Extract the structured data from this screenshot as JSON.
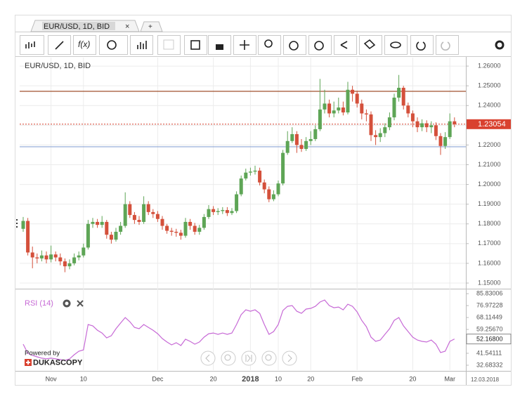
{
  "tab": {
    "label": "EUR/USD, 1D, BID",
    "close": "×",
    "add": "+"
  },
  "toolbar": {
    "function_label": "f(x)"
  },
  "branding": {
    "powered_by": "Powered by",
    "name": "DUKASCOPY"
  },
  "chart_data": [
    {
      "type": "candlestick",
      "title": "EUR/USD, 1D, BID",
      "categories": [
        null,
        null,
        null,
        null,
        null,
        null,
        "Nov",
        null,
        null,
        null,
        null,
        null,
        null,
        "10",
        null,
        null,
        null,
        null,
        null,
        null,
        null,
        null,
        null,
        null,
        null,
        null,
        null,
        null,
        null,
        "Dec",
        null,
        null,
        null,
        null,
        null,
        null,
        null,
        null,
        null,
        null,
        null,
        "20",
        null,
        null,
        null,
        null,
        null,
        null,
        null,
        "2018",
        null,
        null,
        null,
        null,
        null,
        "10",
        null,
        null,
        null,
        null,
        null,
        null,
        "20",
        null,
        null,
        null,
        null,
        null,
        null,
        null,
        null,
        null,
        "Feb",
        null,
        null,
        null,
        null,
        null,
        null,
        null,
        null,
        null,
        null,
        null,
        "20",
        null,
        null,
        null,
        null,
        null,
        null,
        null,
        "Mar",
        null
      ],
      "open": [
        1.1775,
        1.1815,
        1.1655,
        1.163,
        1.1625,
        1.164,
        1.162,
        1.1645,
        1.163,
        1.161,
        1.1585,
        1.16,
        1.163,
        1.164,
        1.168,
        1.18,
        1.181,
        1.1795,
        1.181,
        1.1745,
        1.172,
        1.176,
        1.179,
        1.19,
        1.1845,
        1.182,
        1.181,
        1.19,
        1.186,
        1.185,
        1.1825,
        1.179,
        1.1765,
        1.176,
        1.1755,
        1.174,
        1.181,
        1.179,
        1.176,
        1.178,
        1.1835,
        1.1875,
        1.186,
        1.1865,
        1.187,
        1.1855,
        1.1865,
        1.195,
        1.203,
        1.206,
        1.2065,
        1.207,
        1.201,
        1.1975,
        1.1925,
        1.195,
        1.2005,
        1.216,
        1.222,
        1.2255,
        1.22,
        1.218,
        1.222,
        1.223,
        1.228,
        1.238,
        1.241,
        1.236,
        1.2375,
        1.239,
        1.2365,
        1.248,
        1.246,
        1.241,
        1.236,
        1.2355,
        1.225,
        1.224,
        1.226,
        1.229,
        1.234,
        1.244,
        1.249,
        1.24,
        1.236,
        1.232,
        1.229,
        1.231,
        1.229,
        1.23,
        1.2245,
        1.2195,
        1.224,
        1.232
      ],
      "high": [
        1.1835,
        1.183,
        1.1685,
        1.165,
        1.1665,
        1.166,
        1.169,
        1.166,
        1.165,
        1.1625,
        1.162,
        1.165,
        1.166,
        1.17,
        1.182,
        1.183,
        1.1825,
        1.184,
        1.182,
        1.176,
        1.178,
        1.181,
        1.196,
        1.1915,
        1.186,
        1.184,
        1.194,
        1.1915,
        1.1875,
        1.1865,
        1.184,
        1.18,
        1.178,
        1.1775,
        1.177,
        1.183,
        1.1825,
        1.1805,
        1.1795,
        1.185,
        1.1895,
        1.189,
        1.188,
        1.1885,
        1.1885,
        1.188,
        1.1965,
        1.2045,
        1.208,
        1.2085,
        1.2095,
        1.2085,
        1.2025,
        1.199,
        1.197,
        1.202,
        1.2175,
        1.227,
        1.229,
        1.227,
        1.223,
        1.224,
        1.227,
        1.23,
        1.2535,
        1.248,
        1.243,
        1.242,
        1.244,
        1.242,
        1.252,
        1.25,
        1.2475,
        1.243,
        1.238,
        1.237,
        1.2275,
        1.2285,
        1.231,
        1.2365,
        1.246,
        1.2555,
        1.25,
        1.2415,
        1.2375,
        1.234,
        1.233,
        1.2325,
        1.232,
        1.2315,
        1.226,
        1.2265,
        1.236,
        1.234
      ],
      "low": [
        1.176,
        1.164,
        1.1575,
        1.16,
        1.161,
        1.16,
        1.1605,
        1.161,
        1.159,
        1.1555,
        1.157,
        1.159,
        1.1615,
        1.163,
        1.167,
        1.178,
        1.178,
        1.178,
        1.1725,
        1.17,
        1.171,
        1.1745,
        1.178,
        1.183,
        1.18,
        1.1795,
        1.18,
        1.1845,
        1.183,
        1.181,
        1.177,
        1.175,
        1.174,
        1.1735,
        1.172,
        1.173,
        1.177,
        1.1745,
        1.1745,
        1.177,
        1.1825,
        1.1845,
        1.1845,
        1.185,
        1.184,
        1.1845,
        1.1855,
        1.194,
        1.202,
        1.2045,
        1.205,
        1.1995,
        1.1955,
        1.191,
        1.1915,
        1.194,
        1.1995,
        1.215,
        1.221,
        1.216,
        1.2165,
        1.217,
        1.22,
        1.222,
        1.227,
        1.236,
        1.234,
        1.234,
        1.236,
        1.235,
        1.2355,
        1.242,
        1.239,
        1.233,
        1.232,
        1.222,
        1.22,
        1.2215,
        1.224,
        1.2275,
        1.2325,
        1.242,
        1.238,
        1.234,
        1.229,
        1.2265,
        1.227,
        1.2265,
        1.226,
        1.2225,
        1.215,
        1.218,
        1.223,
        1.229
      ],
      "close": [
        1.1815,
        1.1655,
        1.163,
        1.1625,
        1.164,
        1.162,
        1.1645,
        1.163,
        1.161,
        1.1585,
        1.16,
        1.163,
        1.164,
        1.168,
        1.18,
        1.181,
        1.1795,
        1.181,
        1.1745,
        1.172,
        1.176,
        1.179,
        1.19,
        1.1845,
        1.182,
        1.181,
        1.19,
        1.186,
        1.185,
        1.1825,
        1.179,
        1.1765,
        1.176,
        1.1755,
        1.174,
        1.181,
        1.179,
        1.176,
        1.178,
        1.1835,
        1.1875,
        1.186,
        1.1865,
        1.187,
        1.1855,
        1.1865,
        1.195,
        1.203,
        1.206,
        1.2065,
        1.207,
        1.201,
        1.1975,
        1.1925,
        1.195,
        1.2005,
        1.216,
        1.222,
        1.2255,
        1.22,
        1.218,
        1.222,
        1.223,
        1.228,
        1.238,
        1.241,
        1.236,
        1.2375,
        1.239,
        1.2365,
        1.248,
        1.246,
        1.241,
        1.236,
        1.2355,
        1.225,
        1.224,
        1.226,
        1.229,
        1.234,
        1.244,
        1.249,
        1.24,
        1.236,
        1.232,
        1.229,
        1.231,
        1.229,
        1.23,
        1.2245,
        1.2195,
        1.224,
        1.232,
        1.2305
      ],
      "up_color": "#5ea556",
      "down_color": "#d4503b",
      "ylim": [
        1.1475,
        1.2643
      ],
      "yticks": [
        {
          "value": 1.15,
          "label": "1.15000"
        },
        {
          "value": 1.16,
          "label": "1.16000"
        },
        {
          "value": 1.17,
          "label": "1.17000"
        },
        {
          "value": 1.18,
          "label": "1.18000"
        },
        {
          "value": 1.19,
          "label": "1.19000"
        },
        {
          "value": 1.2,
          "label": "1.20000"
        },
        {
          "value": 1.21,
          "label": "1.21000"
        },
        {
          "value": 1.22,
          "label": "1.22000"
        },
        {
          "value": 1.23,
          "label": "1.23000"
        },
        {
          "value": 1.24,
          "label": "1.24000"
        },
        {
          "value": 1.25,
          "label": "1.25000"
        },
        {
          "value": 1.26,
          "label": "1.26000"
        }
      ],
      "grid": true,
      "lines": [
        {
          "value": 1.2472,
          "color": "#a0522d"
        },
        {
          "value": 1.2191,
          "color": "#8ea6d6"
        }
      ],
      "last_price": {
        "value": 1.23054,
        "label": "1.23054",
        "color": "#d9412f"
      },
      "date_label": "12.03.2018"
    },
    {
      "type": "line",
      "title": "RSI (14)",
      "color": "#c76ad6",
      "values": [
        48.3,
        41.5,
        40.0,
        38.9,
        37.9,
        37.4,
        37.9,
        37.4,
        36.9,
        36.3,
        37.4,
        40.5,
        43.1,
        44.1,
        62.9,
        61.9,
        58.7,
        56.6,
        53.0,
        54.6,
        59.8,
        64.0,
        68.1,
        65.0,
        60.8,
        59.8,
        62.9,
        60.8,
        58.7,
        56.1,
        52.5,
        49.9,
        47.8,
        49.4,
        47.3,
        52.0,
        50.4,
        48.3,
        49.9,
        53.5,
        56.1,
        56.6,
        55.6,
        56.6,
        55.6,
        56.6,
        62.9,
        70.2,
        73.8,
        72.8,
        73.8,
        71.2,
        62.9,
        55.6,
        57.7,
        62.9,
        73.3,
        76.4,
        77.0,
        72.8,
        71.2,
        74.4,
        74.9,
        76.4,
        79.6,
        81.1,
        77.0,
        75.4,
        75.9,
        73.8,
        78.0,
        76.4,
        72.3,
        66.0,
        61.3,
        53.5,
        50.4,
        51.4,
        55.6,
        59.8,
        66.0,
        68.1,
        61.9,
        57.7,
        53.5,
        51.4,
        50.4,
        49.9,
        51.4,
        48.3,
        42.1,
        43.1,
        50.4,
        52.168
      ],
      "ylim": [
        29,
        89
      ],
      "yticks": [
        {
          "value": 32.68332,
          "label": "32.68332"
        },
        {
          "value": 41.54111,
          "label": "41.54111"
        },
        {
          "value": 59.2567,
          "label": "59.25670"
        },
        {
          "value": 68.11449,
          "label": "68.11449"
        },
        {
          "value": 76.97228,
          "label": "76.97228"
        },
        {
          "value": 85.83006,
          "label": "85.83006"
        }
      ],
      "last_value": {
        "value": 52.168,
        "label": "52.16800"
      }
    }
  ]
}
